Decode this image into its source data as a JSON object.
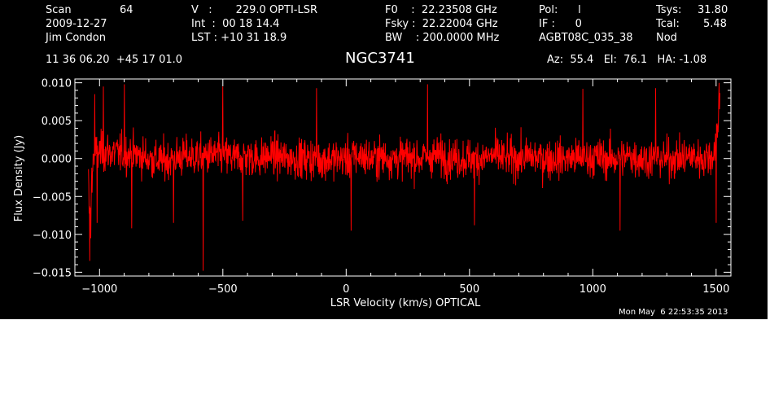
{
  "header": {
    "col1": {
      "scan_label": "Scan",
      "scan_value": "64",
      "date": "2009-12-27",
      "observer": "Jim Condon"
    },
    "col2": {
      "v": "V   :       229.0 OPTI-LSR",
      "int": "Int  :  00 18 14.4",
      "lst": "LST : +10 31 18.9"
    },
    "col3": {
      "f0": "F0    :  22.23508 GHz",
      "fsky": "Fsky :  22.22004 GHz",
      "bw": "BW    : 200.0000 MHz"
    },
    "col4": {
      "pol": "Pol:      l",
      "if": "IF :      0",
      "proj": "AGBT08C_035_38"
    },
    "col5": {
      "tsys_label": "Tsys:",
      "tsys_value": "31.80",
      "tcal_label": "Tcal:",
      "tcal_value": "5.48",
      "mode": "Nod"
    },
    "coords": "11 36 06.20  +45 17 01.0",
    "source": "NGC3741",
    "azel": "Az:  55.4   El:  76.1   HA: -1.08",
    "timestamp": "Mon May  6 22:53:35 2013"
  },
  "chart_data": {
    "type": "line",
    "title": "NGC3741",
    "xlabel": "LSR Velocity (km/s) OPTICAL",
    "ylabel": "Flux Density (Jy)",
    "xlim": [
      -1100,
      1560
    ],
    "ylim": [
      -0.0155,
      0.0105
    ],
    "x_ticks": [
      -1000,
      -500,
      0,
      500,
      1000,
      1500
    ],
    "x_tick_labels": [
      "−1000",
      "−500",
      "0",
      "500",
      "1000",
      "1500"
    ],
    "y_ticks": [
      -0.015,
      -0.01,
      -0.005,
      0.0,
      0.005,
      0.01
    ],
    "y_tick_labels": [
      "−0.015",
      "−0.010",
      "−0.005",
      "0.000",
      "0.005",
      "0.010"
    ],
    "series": [
      {
        "color": "#ff0000",
        "x_start": -1045,
        "x_end": 1515,
        "x": [
          -1045,
          -1040,
          -1035,
          -1025,
          -1000,
          -950,
          -900,
          -850,
          -800,
          -750,
          -700,
          -650,
          -600,
          -550,
          -500,
          -450,
          -400,
          -350,
          -300,
          -250,
          -200,
          -150,
          -100,
          -50,
          0,
          50,
          100,
          150,
          200,
          250,
          300,
          350,
          400,
          450,
          500,
          550,
          600,
          650,
          700,
          750,
          800,
          850,
          900,
          950,
          1000,
          1050,
          1100,
          1150,
          1200,
          1250,
          1300,
          1350,
          1400,
          1450,
          1490,
          1505,
          1515
        ],
        "y_mean": [
          -0.003,
          -0.008,
          -0.006,
          0.0005,
          0.0008,
          0.0008,
          0.0006,
          0.0005,
          0.0,
          -0.0003,
          0.0,
          0.0003,
          0.0002,
          0.0004,
          0.0004,
          0.0001,
          0.0003,
          0.0,
          0.0005,
          0.0,
          0.0,
          0.0,
          -0.0002,
          0.0,
          0.0,
          0.0004,
          0.0,
          0.0002,
          0.0,
          0.0002,
          0.0,
          0.0004,
          0.0002,
          0.0,
          0.0,
          0.0,
          0.0004,
          0.0,
          0.0,
          0.0003,
          0.0,
          0.0,
          0.0,
          0.0,
          0.0002,
          0.0,
          0.0,
          0.0003,
          0.0,
          0.0,
          0.0,
          0.0,
          0.0003,
          0.0,
          0.0005,
          0.004,
          0.008
        ],
        "noise_rms": 0.0022,
        "n_points": 1900,
        "features": [
          {
            "x": -1040,
            "y": -0.0135
          },
          {
            "x": -1035,
            "y": -0.0105
          },
          {
            "x": -1020,
            "y": 0.0085
          },
          {
            "x": -1010,
            "y": -0.0085
          },
          {
            "x": -985,
            "y": 0.0095
          },
          {
            "x": -900,
            "y": 0.0098
          },
          {
            "x": -870,
            "y": -0.0092
          },
          {
            "x": -700,
            "y": -0.0085
          },
          {
            "x": -580,
            "y": -0.0148
          },
          {
            "x": -500,
            "y": 0.0095
          },
          {
            "x": -420,
            "y": -0.0082
          },
          {
            "x": -120,
            "y": 0.0093
          },
          {
            "x": 20,
            "y": -0.0095
          },
          {
            "x": 330,
            "y": 0.0098
          },
          {
            "x": 520,
            "y": -0.0088
          },
          {
            "x": 960,
            "y": 0.0092
          },
          {
            "x": 1110,
            "y": -0.0095
          },
          {
            "x": 1255,
            "y": 0.0093
          },
          {
            "x": 1500,
            "y": -0.0085
          },
          {
            "x": 1512,
            "y": 0.01
          }
        ]
      }
    ]
  }
}
